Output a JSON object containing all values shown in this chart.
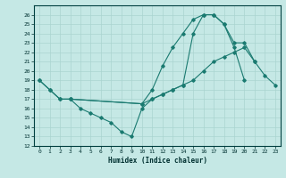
{
  "xlabel": "Humidex (Indice chaleur)",
  "xlim": [
    -0.5,
    23.5
  ],
  "ylim": [
    12,
    27
  ],
  "yticks": [
    12,
    13,
    14,
    15,
    16,
    17,
    18,
    19,
    20,
    21,
    22,
    23,
    24,
    25,
    26
  ],
  "xticks": [
    0,
    1,
    2,
    3,
    4,
    5,
    6,
    7,
    8,
    9,
    10,
    11,
    12,
    13,
    14,
    15,
    16,
    17,
    18,
    19,
    20,
    21,
    22,
    23
  ],
  "background_color": "#c5e8e5",
  "grid_color": "#aad4d0",
  "line_color": "#1a7a70",
  "line1": {
    "x": [
      0,
      1,
      2,
      3,
      10,
      11,
      12,
      13,
      14,
      15,
      16,
      17,
      18,
      19,
      20
    ],
    "y": [
      19,
      18,
      17,
      17,
      16.5,
      18,
      20.5,
      22.5,
      24,
      25.5,
      26,
      26,
      25,
      22.5,
      19
    ]
  },
  "line2": {
    "x": [
      0,
      1,
      2,
      3,
      10,
      11,
      12,
      13,
      14,
      15,
      16,
      17,
      18,
      19,
      20,
      21,
      22,
      23
    ],
    "y": [
      19,
      18,
      17,
      17,
      16.5,
      17,
      17.5,
      18,
      18.5,
      19,
      20,
      21,
      21.5,
      22,
      22.5,
      21,
      19.5,
      18.5
    ]
  },
  "line3": {
    "x": [
      3,
      4,
      5,
      6,
      7,
      8,
      9,
      10,
      11,
      12,
      13,
      14,
      15,
      16,
      17,
      18,
      19,
      20,
      21
    ],
    "y": [
      17,
      16,
      15.5,
      15,
      14.5,
      13.5,
      13,
      16,
      17,
      17.5,
      18,
      18.5,
      24,
      26,
      26,
      25,
      23,
      23,
      21
    ]
  }
}
